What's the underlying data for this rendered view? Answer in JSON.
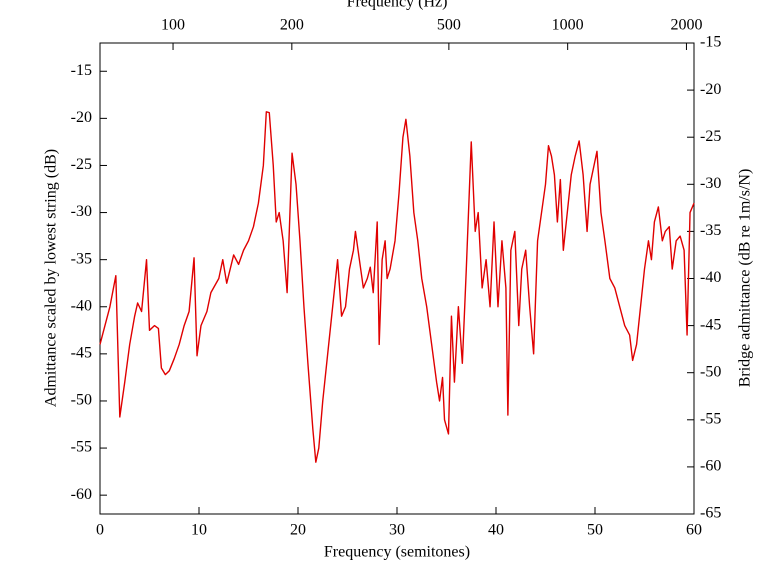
{
  "chart_data": {
    "type": "line",
    "x_label": "Frequency (semitones)",
    "x2_label": "Frequency (Hz)",
    "y_label": "Admittance scaled by lowest string (dB)",
    "y2_label": "Bridge admittance (dB re 1m/s/N)",
    "x": [
      0,
      0.5,
      1,
      1.6,
      2.0,
      2.5,
      3,
      3.5,
      3.8,
      4.2,
      4.7,
      5,
      5.5,
      5.9,
      6.2,
      6.6,
      7,
      7.5,
      8,
      8.5,
      9,
      9.5,
      9.8,
      10.2,
      10.8,
      11.2,
      12,
      12.4,
      12.8,
      13.5,
      14,
      14.5,
      15,
      15.5,
      16,
      16.5,
      16.8,
      17.1,
      17.5,
      17.8,
      18.1,
      18.5,
      18.9,
      19.4,
      19.8,
      20.2,
      20.6,
      21,
      21.5,
      21.8,
      22.1,
      22.5,
      23,
      23.5,
      24,
      24.4,
      24.8,
      25.2,
      25.6,
      25.8,
      26.2,
      26.6,
      27,
      27.3,
      27.6,
      28,
      28.2,
      28.5,
      28.8,
      29,
      29.3,
      29.8,
      30.2,
      30.6,
      30.9,
      31.3,
      31.7,
      32.1,
      32.5,
      33,
      33.5,
      34,
      34.3,
      34.6,
      34.8,
      35.2,
      35.5,
      35.8,
      36.2,
      36.6,
      37,
      37.5,
      37.9,
      38.2,
      38.6,
      39,
      39.4,
      39.8,
      40.2,
      40.6,
      41,
      41.2,
      41.5,
      41.9,
      42.3,
      42.6,
      43,
      43.4,
      43.8,
      44.2,
      44.6,
      45,
      45.3,
      45.6,
      45.9,
      46.2,
      46.5,
      46.8,
      47.2,
      47.6,
      48,
      48.4,
      48.8,
      49.2,
      49.5,
      49.9,
      50.2,
      50.6,
      51,
      51.5,
      52,
      52.5,
      53,
      53.5,
      53.8,
      54.2,
      54.6,
      55,
      55.4,
      55.7,
      56,
      56.4,
      56.8,
      57.1,
      57.5,
      57.8,
      58.2,
      58.6,
      59,
      59.3,
      59.6,
      60
    ],
    "series": [
      {
        "color": "#e00000",
        "values": [
          -44,
          -42,
          -40,
          -36.7,
          -51.7,
          -48,
          -44,
          -41,
          -39.6,
          -40.5,
          -35,
          -42.5,
          -42,
          -42.3,
          -46.5,
          -47.2,
          -46.8,
          -45.5,
          -44,
          -42,
          -40.5,
          -34.8,
          -45.2,
          -42,
          -40.5,
          -38.5,
          -37,
          -35,
          -37.5,
          -34.5,
          -35.5,
          -34,
          -33,
          -31.5,
          -29,
          -25,
          -19.3,
          -19.4,
          -25,
          -31,
          -30,
          -33,
          -38.5,
          -23.7,
          -27,
          -33,
          -40,
          -46,
          -53,
          -56.5,
          -55,
          -50,
          -45,
          -40,
          -35,
          -41,
          -40,
          -36,
          -34,
          -32,
          -35,
          -38,
          -37,
          -35.8,
          -38.5,
          -31,
          -44,
          -35,
          -33,
          -37,
          -36,
          -33,
          -28,
          -22,
          -20.1,
          -24,
          -30,
          -33,
          -37,
          -40,
          -44,
          -48,
          -50,
          -47.5,
          -52,
          -53.5,
          -41,
          -48,
          -40,
          -46,
          -36,
          -22.5,
          -32,
          -30,
          -38,
          -35,
          -40,
          -31,
          -40,
          -33,
          -38,
          -51.5,
          -34,
          -32,
          -42,
          -36,
          -34,
          -40,
          -45,
          -33,
          -30,
          -27,
          -22.9,
          -24,
          -26,
          -31,
          -26.5,
          -34,
          -30,
          -26,
          -24,
          -22.4,
          -26,
          -32,
          -27,
          -25,
          -23.5,
          -30,
          -33,
          -37,
          -38,
          -40,
          -42,
          -43,
          -45.7,
          -44,
          -40,
          -36,
          -33,
          -35,
          -31,
          -29.4,
          -33,
          -32,
          -31.5,
          -36,
          -33,
          -32.5,
          -34,
          -43,
          -30,
          -29
        ]
      }
    ],
    "xlim": [
      0,
      60
    ],
    "xticks": [
      0,
      10,
      20,
      30,
      40,
      50,
      60
    ],
    "ylim": [
      -62,
      -12
    ],
    "yticks": [
      -60,
      -55,
      -50,
      -45,
      -40,
      -35,
      -30,
      -25,
      -20,
      -15
    ],
    "y2lim": [
      -65,
      -15
    ],
    "y2ticks": [
      -65,
      -60,
      -55,
      -50,
      -45,
      -40,
      -35,
      -30,
      -25,
      -20,
      -15
    ],
    "x2lim": [
      65.3,
      2090
    ],
    "x2scale": "log",
    "x2ticks": [
      100,
      200,
      500,
      1000,
      2000
    ]
  }
}
